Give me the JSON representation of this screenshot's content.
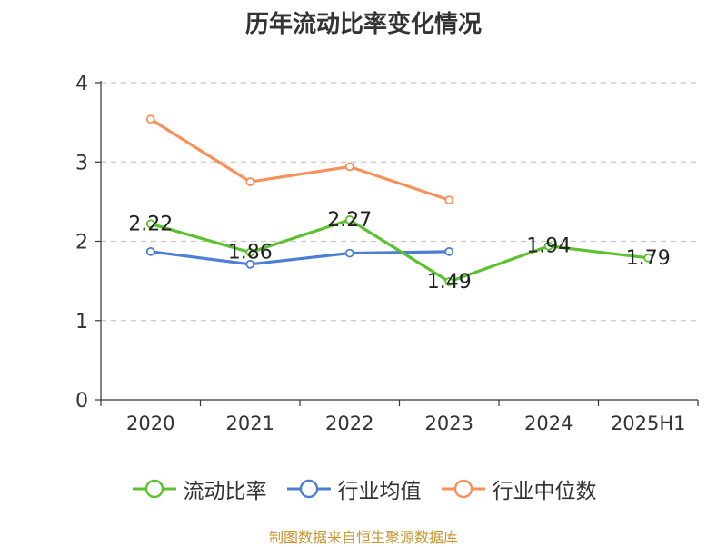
{
  "chart_data": {
    "type": "line",
    "title": "历年流动比率变化情况",
    "categories": [
      "2020",
      "2021",
      "2022",
      "2023",
      "2024",
      "2025H1"
    ],
    "yticks": [
      "0",
      "1",
      "2",
      "3",
      "4"
    ],
    "ylim": [
      0,
      4
    ],
    "grid": "horizontal dashed",
    "legend_position": "bottom",
    "series": [
      {
        "name": "流动比率",
        "color": "#5cc12f",
        "values": [
          2.22,
          1.86,
          2.27,
          1.49,
          1.94,
          1.79
        ],
        "labels": [
          "2.22",
          "1.86",
          "2.27",
          "1.49",
          "1.94",
          "1.79"
        ]
      },
      {
        "name": "行业均值",
        "color": "#4a7fd4",
        "values": [
          1.87,
          1.71,
          1.85,
          1.87,
          null,
          null
        ]
      },
      {
        "name": "行业中位数",
        "color": "#f7905a",
        "values": [
          3.54,
          2.75,
          2.94,
          2.52,
          null,
          null
        ]
      }
    ]
  },
  "source": "制图数据来自恒生聚源数据库"
}
